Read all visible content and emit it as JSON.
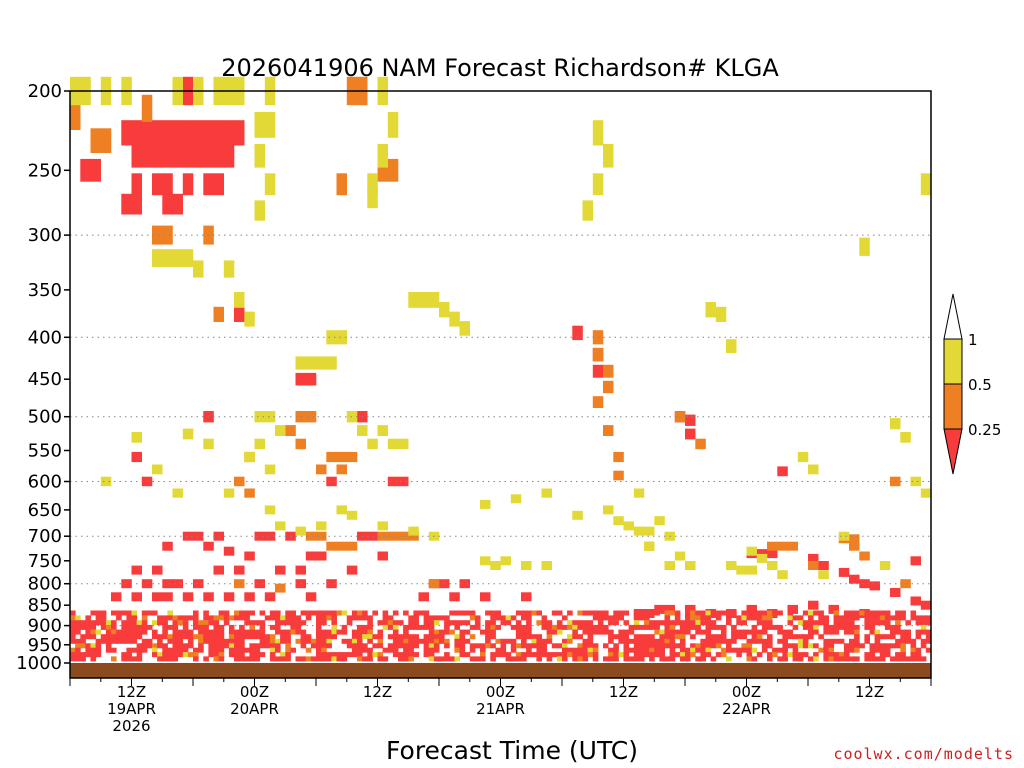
{
  "chart_data": {
    "type": "heatmap",
    "title": "2026041906 NAM Forecast Richardson# KLGA",
    "xlabel": "Forecast Time (UTC)",
    "ylabel": "",
    "y_axis": {
      "range": [
        1000,
        200
      ],
      "ticks": [
        200,
        250,
        300,
        350,
        400,
        450,
        500,
        550,
        600,
        650,
        700,
        750,
        800,
        850,
        900,
        950,
        1000
      ],
      "gridlines_at": [
        300,
        400,
        500,
        600,
        700,
        800,
        900
      ]
    },
    "x_axis": {
      "range_hours": [
        0,
        84
      ],
      "ticks": [
        {
          "hour": 6,
          "label": "12Z",
          "date": "19APR",
          "year": "2026"
        },
        {
          "hour": 18,
          "label": "00Z",
          "date": "20APR",
          "year": ""
        },
        {
          "hour": 30,
          "label": "12Z",
          "date": "",
          "year": ""
        },
        {
          "hour": 42,
          "label": "00Z",
          "date": "21APR",
          "year": ""
        },
        {
          "hour": 54,
          "label": "12Z",
          "date": "",
          "year": ""
        },
        {
          "hour": 66,
          "label": "00Z",
          "date": "22APR",
          "year": ""
        },
        {
          "hour": 78,
          "label": "12Z",
          "date": "",
          "year": ""
        }
      ]
    },
    "legend": {
      "position": "right",
      "levels": [
        "1",
        "0.5",
        "0.25"
      ],
      "bins": [
        {
          "range": ">1",
          "color": "#ffffff"
        },
        {
          "range": "0.5-1",
          "color": "#e3d936"
        },
        {
          "range": "0.25-0.5",
          "color": "#ef7f23"
        },
        {
          "range": "<0.25",
          "color": "#f83b3b"
        }
      ]
    },
    "surface_color": "#8c4a1f",
    "series": [
      {
        "name": "Ri < 0.25",
        "color": "#f83b3b",
        "cells": [
          [
            5,
            225
          ],
          [
            6,
            225
          ],
          [
            7,
            225
          ],
          [
            8,
            225
          ],
          [
            9,
            225
          ],
          [
            10,
            225
          ],
          [
            11,
            225
          ],
          [
            12,
            225
          ],
          [
            13,
            225
          ],
          [
            14,
            225
          ],
          [
            15,
            225
          ],
          [
            16,
            225
          ],
          [
            6,
            240
          ],
          [
            7,
            240
          ],
          [
            8,
            240
          ],
          [
            9,
            240
          ],
          [
            10,
            240
          ],
          [
            11,
            240
          ],
          [
            12,
            240
          ],
          [
            13,
            240
          ],
          [
            14,
            240
          ],
          [
            15,
            240
          ],
          [
            6,
            260
          ],
          [
            8,
            260
          ],
          [
            9,
            260
          ],
          [
            11,
            260
          ],
          [
            13,
            260
          ],
          [
            14,
            260
          ],
          [
            5,
            275
          ],
          [
            6,
            275
          ],
          [
            9,
            275
          ],
          [
            10,
            275
          ],
          [
            2,
            250
          ],
          [
            1,
            250
          ],
          [
            11,
            200
          ],
          [
            16,
            375
          ],
          [
            22,
            450
          ],
          [
            23,
            450
          ],
          [
            13,
            500
          ],
          [
            28,
            500
          ],
          [
            6,
            560
          ],
          [
            7,
            600
          ],
          [
            25,
            600
          ],
          [
            31,
            600
          ],
          [
            32,
            600
          ],
          [
            11,
            700
          ],
          [
            12,
            700
          ],
          [
            14,
            700
          ],
          [
            18,
            700
          ],
          [
            19,
            700
          ],
          [
            21,
            700
          ],
          [
            28,
            700
          ],
          [
            29,
            700
          ],
          [
            9,
            720
          ],
          [
            13,
            720
          ],
          [
            15,
            730
          ],
          [
            17,
            740
          ],
          [
            23,
            740
          ],
          [
            24,
            740
          ],
          [
            30,
            740
          ],
          [
            6,
            770
          ],
          [
            8,
            770
          ],
          [
            14,
            770
          ],
          [
            16,
            770
          ],
          [
            20,
            770
          ],
          [
            22,
            770
          ],
          [
            27,
            770
          ],
          [
            5,
            800
          ],
          [
            7,
            800
          ],
          [
            9,
            800
          ],
          [
            10,
            800
          ],
          [
            12,
            800
          ],
          [
            18,
            800
          ],
          [
            22,
            800
          ],
          [
            25,
            800
          ],
          [
            35,
            800
          ],
          [
            36,
            800
          ],
          [
            38,
            800
          ],
          [
            4,
            830
          ],
          [
            6,
            830
          ],
          [
            8,
            830
          ],
          [
            9,
            830
          ],
          [
            11,
            830
          ],
          [
            13,
            830
          ],
          [
            15,
            830
          ],
          [
            17,
            830
          ],
          [
            19,
            830
          ],
          [
            23,
            830
          ],
          [
            34,
            830
          ],
          [
            37,
            830
          ],
          [
            40,
            830
          ],
          [
            44,
            830
          ],
          [
            51,
            420
          ],
          [
            51,
            440
          ],
          [
            49,
            395
          ],
          [
            66,
            735
          ],
          [
            67,
            735
          ],
          [
            68,
            735
          ],
          [
            72,
            745
          ],
          [
            73,
            760
          ],
          [
            75,
            775
          ],
          [
            76,
            790
          ],
          [
            77,
            800
          ],
          [
            78,
            805
          ],
          [
            80,
            820
          ],
          [
            82,
            840
          ],
          [
            83,
            850
          ],
          [
            59,
            500
          ],
          [
            60,
            505
          ],
          [
            60,
            525
          ],
          [
            69,
            583
          ],
          [
            82,
            750
          ],
          [
            55,
            870
          ],
          [
            56,
            870
          ],
          [
            57,
            860
          ],
          [
            58,
            860
          ],
          [
            60,
            860
          ],
          [
            62,
            870
          ],
          [
            64,
            870
          ],
          [
            66,
            860
          ],
          [
            68,
            870
          ],
          [
            70,
            860
          ],
          [
            72,
            850
          ],
          [
            74,
            860
          ],
          [
            77,
            870
          ]
        ]
      },
      {
        "name": "0.25 <= Ri < 0.5",
        "color": "#ef7f23",
        "cells": [
          [
            0,
            215
          ],
          [
            2,
            230
          ],
          [
            3,
            230
          ],
          [
            7,
            210
          ],
          [
            8,
            300
          ],
          [
            9,
            300
          ],
          [
            13,
            300
          ],
          [
            14,
            375
          ],
          [
            27,
            200
          ],
          [
            28,
            200
          ],
          [
            30,
            250
          ],
          [
            31,
            250
          ],
          [
            26,
            260
          ],
          [
            51,
            400
          ],
          [
            51,
            420
          ],
          [
            52,
            440
          ],
          [
            52,
            460
          ],
          [
            51,
            480
          ],
          [
            52,
            520
          ],
          [
            53,
            560
          ],
          [
            53,
            590
          ],
          [
            22,
            500
          ],
          [
            23,
            500
          ],
          [
            21,
            520
          ],
          [
            22,
            540
          ],
          [
            17,
            560
          ],
          [
            16,
            600
          ],
          [
            17,
            620
          ],
          [
            25,
            560
          ],
          [
            26,
            560
          ],
          [
            27,
            560
          ],
          [
            24,
            580
          ],
          [
            26,
            580
          ],
          [
            23,
            700
          ],
          [
            24,
            700
          ],
          [
            25,
            720
          ],
          [
            26,
            720
          ],
          [
            27,
            720
          ],
          [
            30,
            700
          ],
          [
            31,
            700
          ],
          [
            32,
            700
          ],
          [
            33,
            700
          ],
          [
            16,
            800
          ],
          [
            20,
            810
          ],
          [
            35,
            800
          ],
          [
            59,
            500
          ],
          [
            56,
            720
          ],
          [
            61,
            540
          ],
          [
            68,
            720
          ],
          [
            69,
            720
          ],
          [
            70,
            720
          ],
          [
            75,
            705
          ],
          [
            76,
            705
          ],
          [
            76,
            720
          ],
          [
            77,
            740
          ],
          [
            80,
            600
          ],
          [
            81,
            800
          ],
          [
            72,
            760
          ]
        ]
      },
      {
        "name": "0.5 <= Ri < 1",
        "color": "#e3d936",
        "cells": [
          [
            0,
            200
          ],
          [
            1,
            200
          ],
          [
            3,
            200
          ],
          [
            5,
            200
          ],
          [
            10,
            200
          ],
          [
            12,
            200
          ],
          [
            14,
            200
          ],
          [
            15,
            200
          ],
          [
            16,
            200
          ],
          [
            19,
            200
          ],
          [
            18,
            220
          ],
          [
            19,
            220
          ],
          [
            30,
            200
          ],
          [
            31,
            220
          ],
          [
            30,
            240
          ],
          [
            29,
            260
          ],
          [
            29,
            270
          ],
          [
            18,
            240
          ],
          [
            19,
            260
          ],
          [
            18,
            280
          ],
          [
            8,
            320
          ],
          [
            9,
            320
          ],
          [
            10,
            320
          ],
          [
            11,
            320
          ],
          [
            12,
            330
          ],
          [
            15,
            330
          ],
          [
            16,
            360
          ],
          [
            17,
            380
          ],
          [
            33,
            360
          ],
          [
            34,
            360
          ],
          [
            35,
            360
          ],
          [
            36,
            370
          ],
          [
            37,
            380
          ],
          [
            38,
            390
          ],
          [
            25,
            400
          ],
          [
            26,
            400
          ],
          [
            22,
            430
          ],
          [
            23,
            430
          ],
          [
            24,
            430
          ],
          [
            25,
            430
          ],
          [
            27,
            500
          ],
          [
            28,
            520
          ],
          [
            29,
            540
          ],
          [
            30,
            520
          ],
          [
            31,
            540
          ],
          [
            32,
            540
          ],
          [
            18,
            500
          ],
          [
            19,
            500
          ],
          [
            20,
            520
          ],
          [
            18,
            540
          ],
          [
            17,
            560
          ],
          [
            19,
            580
          ],
          [
            6,
            530
          ],
          [
            11,
            525
          ],
          [
            13,
            540
          ],
          [
            8,
            580
          ],
          [
            3,
            600
          ],
          [
            10,
            620
          ],
          [
            15,
            620
          ],
          [
            19,
            650
          ],
          [
            20,
            680
          ],
          [
            22,
            690
          ],
          [
            24,
            680
          ],
          [
            26,
            650
          ],
          [
            27,
            660
          ],
          [
            30,
            680
          ],
          [
            33,
            690
          ],
          [
            35,
            700
          ],
          [
            40,
            750
          ],
          [
            41,
            760
          ],
          [
            42,
            750
          ],
          [
            44,
            760
          ],
          [
            46,
            760
          ],
          [
            50,
            280
          ],
          [
            51,
            260
          ],
          [
            52,
            240
          ],
          [
            51,
            225
          ],
          [
            53,
            670
          ],
          [
            54,
            680
          ],
          [
            55,
            690
          ],
          [
            56,
            690
          ],
          [
            57,
            670
          ],
          [
            58,
            700
          ],
          [
            62,
            370
          ],
          [
            63,
            375
          ],
          [
            64,
            410
          ],
          [
            66,
            730
          ],
          [
            67,
            745
          ],
          [
            68,
            760
          ],
          [
            71,
            560
          ],
          [
            72,
            580
          ],
          [
            75,
            700
          ],
          [
            79,
            760
          ],
          [
            80,
            510
          ],
          [
            81,
            530
          ],
          [
            82,
            600
          ],
          [
            83,
            620
          ],
          [
            83,
            260
          ],
          [
            77,
            310
          ],
          [
            40,
            640
          ],
          [
            43,
            630
          ],
          [
            46,
            620
          ],
          [
            49,
            660
          ],
          [
            52,
            650
          ],
          [
            55,
            620
          ],
          [
            56,
            720
          ],
          [
            58,
            760
          ],
          [
            59,
            740
          ],
          [
            60,
            760
          ],
          [
            64,
            760
          ],
          [
            65,
            770
          ],
          [
            66,
            770
          ],
          [
            69,
            780
          ],
          [
            73,
            780
          ]
        ]
      }
    ]
  },
  "credit": "coolwx.com/modelts"
}
